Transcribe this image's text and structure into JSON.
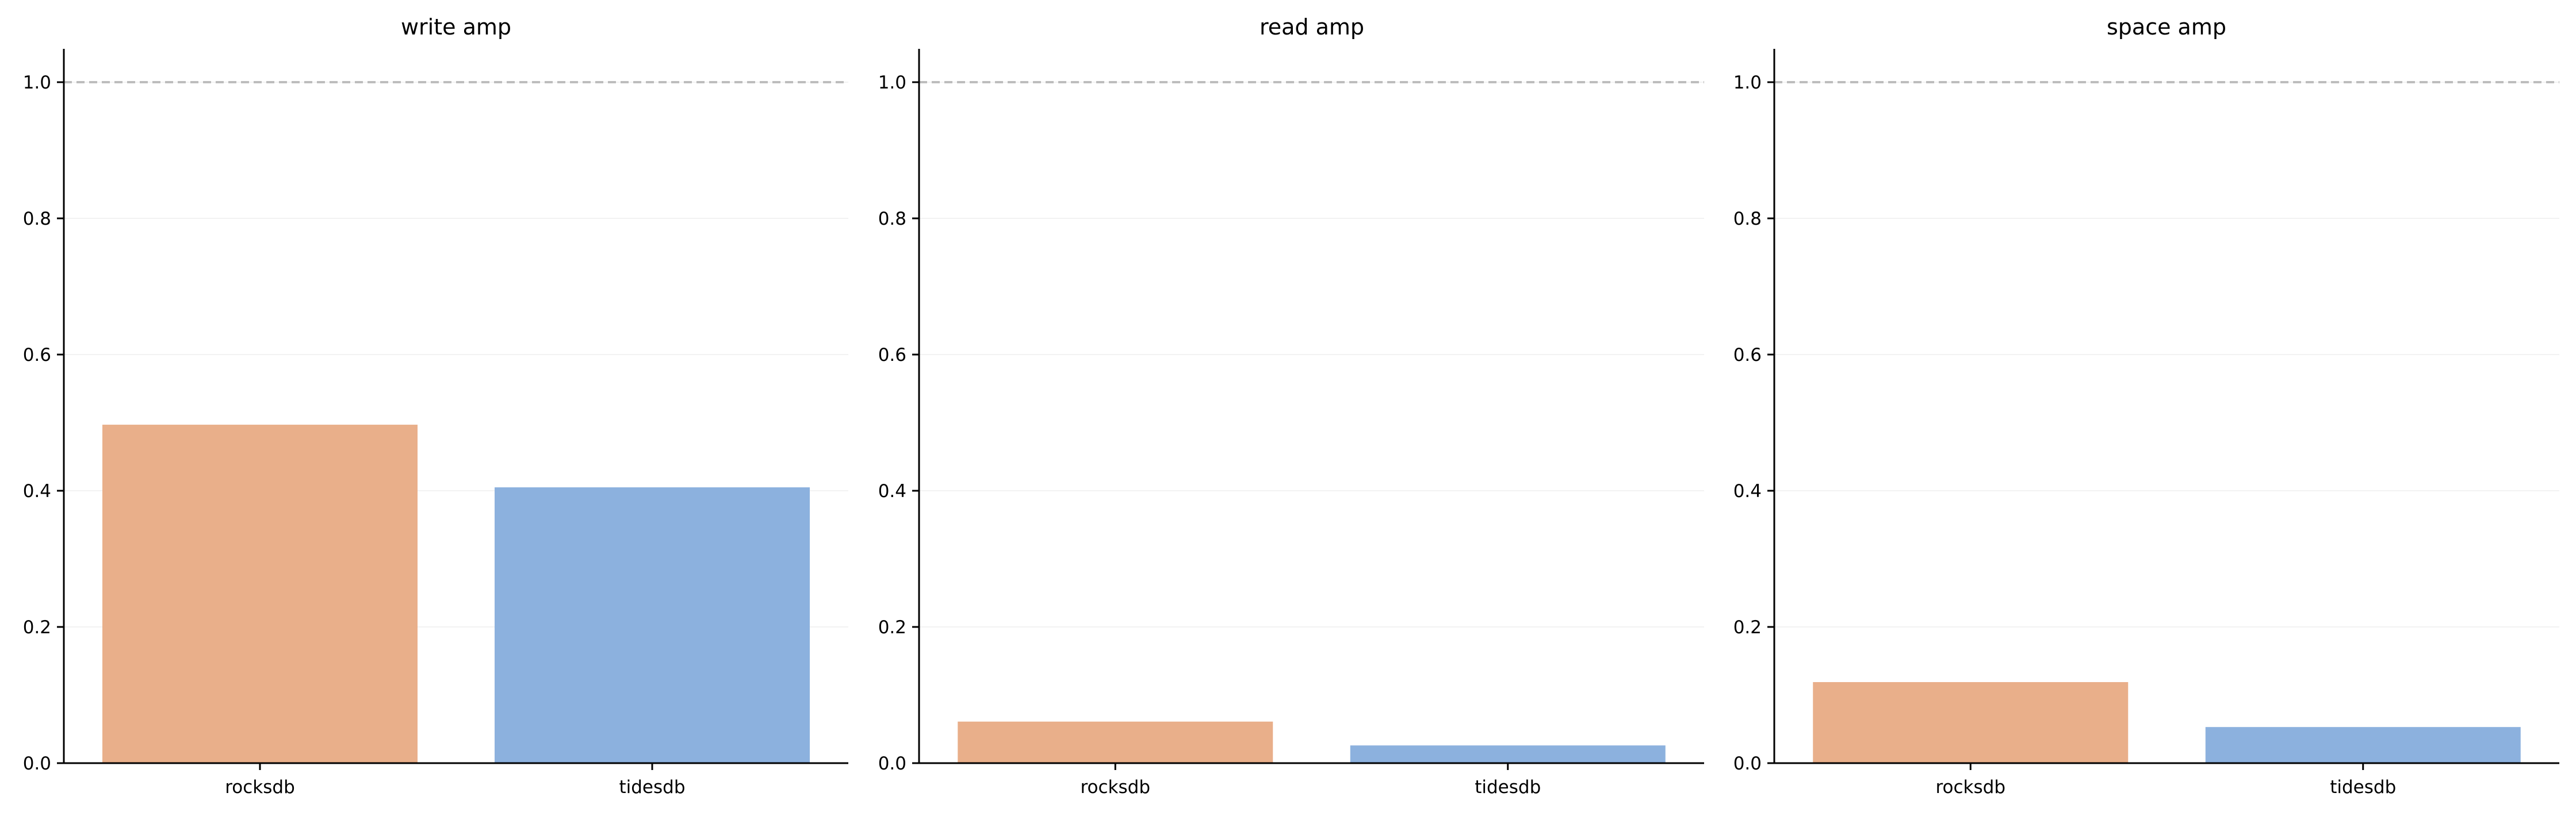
{
  "chart_data": [
    {
      "type": "bar",
      "title": "write amp",
      "categories": [
        "rocksdb",
        "tidesdb"
      ],
      "values": [
        0.497,
        0.405
      ],
      "colors": [
        "#e9af8a",
        "#8cb1de"
      ],
      "ylim": [
        0,
        1.05
      ],
      "yticks": [
        "0.0",
        "0.2",
        "0.4",
        "0.6",
        "0.8",
        "1.0"
      ],
      "reference_line": 1.0,
      "grid": "y"
    },
    {
      "type": "bar",
      "title": "read amp",
      "categories": [
        "rocksdb",
        "tidesdb"
      ],
      "values": [
        0.061,
        0.026
      ],
      "colors": [
        "#e9af8a",
        "#8cb1de"
      ],
      "ylim": [
        0,
        1.05
      ],
      "yticks": [
        "0.0",
        "0.2",
        "0.4",
        "0.6",
        "0.8",
        "1.0"
      ],
      "reference_line": 1.0,
      "grid": "y"
    },
    {
      "type": "bar",
      "title": "space amp",
      "categories": [
        "rocksdb",
        "tidesdb"
      ],
      "values": [
        0.119,
        0.053
      ],
      "colors": [
        "#e9af8a",
        "#8cb1de"
      ],
      "ylim": [
        0,
        1.05
      ],
      "yticks": [
        "0.0",
        "0.2",
        "0.4",
        "0.6",
        "0.8",
        "1.0"
      ],
      "reference_line": 1.0,
      "grid": "y"
    }
  ]
}
